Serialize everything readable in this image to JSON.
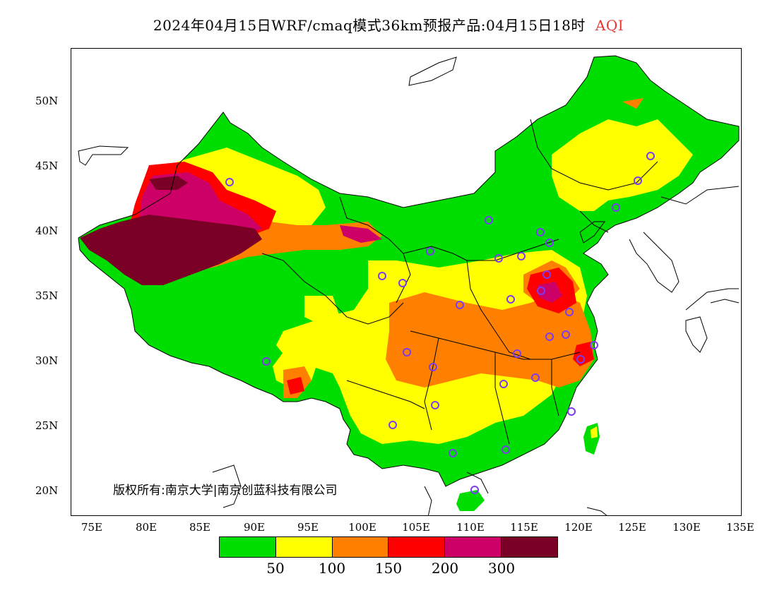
{
  "title": {
    "main": "2024年04月15日WRF/cmaq模式36km预报产品:04月15日18时",
    "variable": "AQI"
  },
  "copyright": "版权所有:南京大学|南京创蓝科技有限公司",
  "axes": {
    "latitude_labels": [
      "50N",
      "45N",
      "40N",
      "35N",
      "30N",
      "25N",
      "20N"
    ],
    "longitude_labels": [
      "75E",
      "80E",
      "85E",
      "90E",
      "95E",
      "100E",
      "105E",
      "110E",
      "115E",
      "120E",
      "125E",
      "130E",
      "135E"
    ]
  },
  "legend": {
    "colors": [
      "#00dd00",
      "#ffff00",
      "#ff8000",
      "#ff0000",
      "#cc0066",
      "#7a0026"
    ],
    "labels": [
      "50",
      "100",
      "150",
      "200",
      "300"
    ]
  },
  "map_colors": {
    "good": "#00dd00",
    "moderate": "#ffff00",
    "unhealthy_sensitive": "#ff8000",
    "unhealthy": "#ff0000",
    "very_unhealthy": "#cc0066",
    "hazardous": "#7a0026",
    "station_marker": "#7a3cf0"
  }
}
